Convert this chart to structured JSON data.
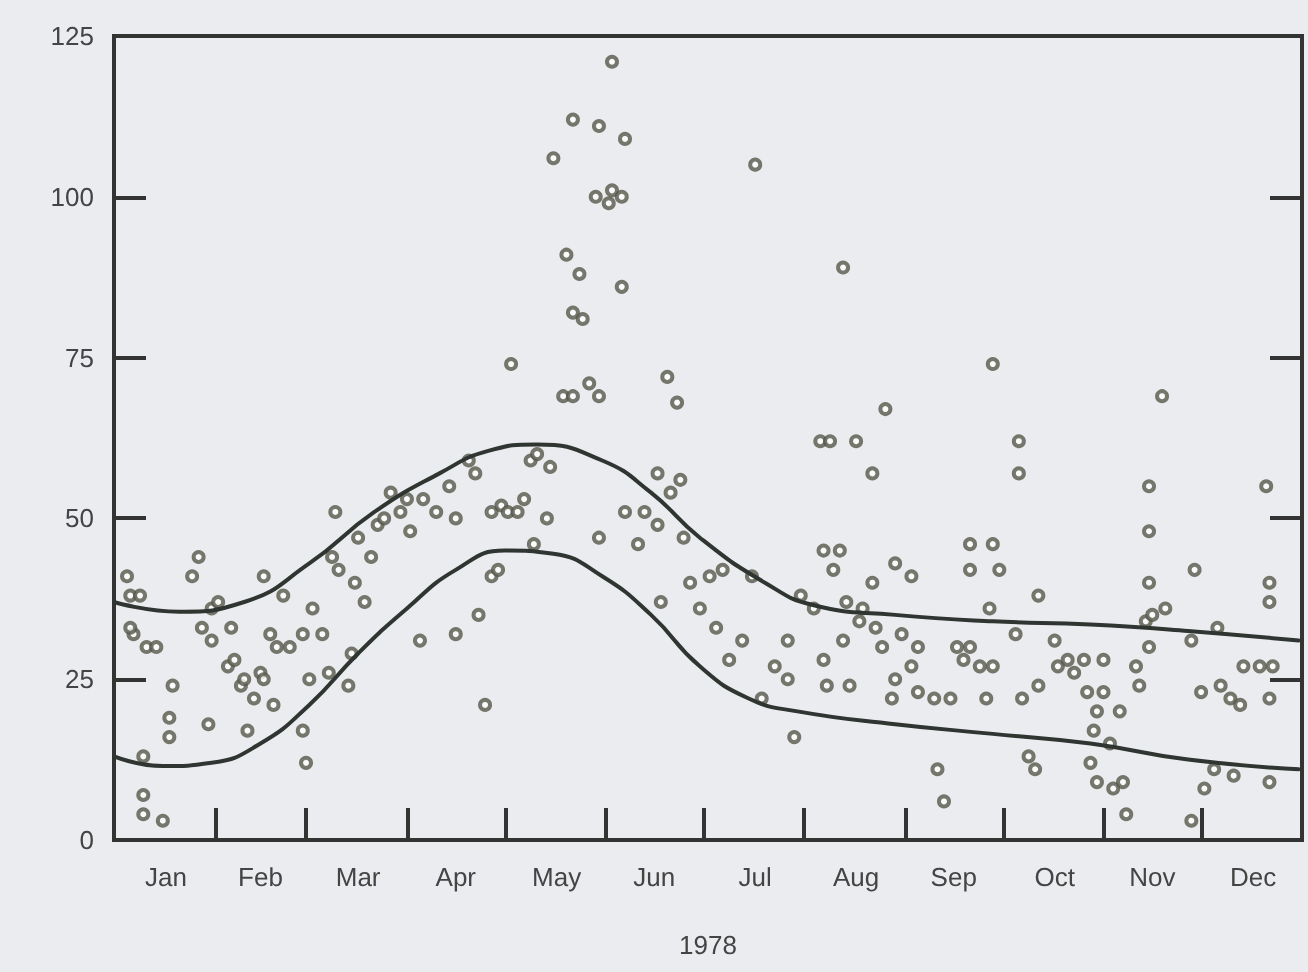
{
  "chart_data": {
    "type": "scatter",
    "xlabel": "1978",
    "line_style": "solid",
    "grid": false,
    "xlim": [
      "1978-01-01",
      "1979-01-01"
    ],
    "ylim": [
      0,
      125
    ],
    "yticks": [
      0,
      25,
      50,
      75,
      100,
      125
    ],
    "xticks": [
      {
        "value": "1978-01-17",
        "label": "Jan"
      },
      {
        "value": "1978-02-01",
        "label": null
      },
      {
        "value": "1978-02-15",
        "label": "Feb"
      },
      {
        "value": "1978-03-01",
        "label": null
      },
      {
        "value": "1978-03-17",
        "label": "Mar"
      },
      {
        "value": "1978-04-01",
        "label": null
      },
      {
        "value": "1978-04-16",
        "label": "Apr"
      },
      {
        "value": "1978-05-01",
        "label": null
      },
      {
        "value": "1978-05-17",
        "label": "May"
      },
      {
        "value": "1978-06-01",
        "label": null
      },
      {
        "value": "1978-06-16",
        "label": "Jun"
      },
      {
        "value": "1978-07-01",
        "label": null
      },
      {
        "value": "1978-07-17",
        "label": "Jul"
      },
      {
        "value": "1978-08-01",
        "label": null
      },
      {
        "value": "1978-08-17",
        "label": "Aug"
      },
      {
        "value": "1978-09-01",
        "label": null
      },
      {
        "value": "1978-09-16",
        "label": "Sep"
      },
      {
        "value": "1978-10-01",
        "label": null
      },
      {
        "value": "1978-10-17",
        "label": "Oct"
      },
      {
        "value": "1978-11-01",
        "label": null
      },
      {
        "value": "1978-11-16",
        "label": "Nov"
      },
      {
        "value": "1978-12-01",
        "label": null
      },
      {
        "value": "1978-12-17",
        "label": "Dec"
      }
    ],
    "series": [
      {
        "color": "#55584a",
        "marker": "circle",
        "x": [
          "1978-01-05",
          "1978-01-06",
          "1978-01-09",
          "1978-01-07",
          "1978-01-06",
          "1978-01-11",
          "1978-01-14",
          "1978-01-10",
          "1978-01-10",
          "1978-01-10",
          "1978-01-16",
          "1978-01-19",
          "1978-01-18",
          "1978-01-18",
          "1978-01-27",
          "1978-01-25",
          "1978-01-28",
          "1978-01-31",
          "1978-01-30",
          "1978-01-31",
          "1978-02-02",
          "1978-02-06",
          "1978-02-05",
          "1978-02-07",
          "1978-02-09",
          "1978-02-10",
          "1978-02-11",
          "1978-02-13",
          "1978-02-16",
          "1978-02-15",
          "1978-02-16",
          "1978-02-18",
          "1978-02-20",
          "1978-02-19",
          "1978-02-22",
          "1978-02-24",
          "1978-02-28",
          "1978-02-28",
          "1978-03-01",
          "1978-03-03",
          "1978-03-02",
          "1978-03-06",
          "1978-03-08",
          "1978-03-09",
          "1978-03-10",
          "1978-03-11",
          "1978-03-14",
          "1978-03-15",
          "1978-03-16",
          "1978-03-17",
          "1978-03-19",
          "1978-03-21",
          "1978-03-23",
          "1978-03-25",
          "1978-03-27",
          "1978-03-30",
          "1978-04-01",
          "1978-04-02",
          "1978-04-05",
          "1978-04-06",
          "1978-04-10",
          "1978-04-16",
          "1978-04-14",
          "1978-04-16",
          "1978-04-20",
          "1978-04-22",
          "1978-04-23",
          "1978-04-25",
          "1978-04-27",
          "1978-04-30",
          "1978-04-27",
          "1978-04-29",
          "1978-05-02",
          "1978-05-05",
          "1978-05-07",
          "1978-05-09",
          "1978-05-11",
          "1978-05-15",
          "1978-05-14",
          "1978-05-10",
          "1978-05-03",
          "1978-05-16",
          "1978-05-19",
          "1978-05-20",
          "1978-05-22",
          "1978-05-22",
          "1978-05-22",
          "1978-05-24",
          "1978-05-25",
          "1978-05-27",
          "1978-05-29",
          "1978-05-30",
          "1978-05-30",
          "1978-05-30",
          "1978-06-02",
          "1978-06-03",
          "1978-06-03",
          "1978-06-06",
          "1978-06-06",
          "1978-06-07",
          "1978-06-07",
          "1978-06-11",
          "1978-06-13",
          "1978-06-17",
          "1978-06-17",
          "1978-06-20",
          "1978-06-21",
          "1978-06-23",
          "1978-06-24",
          "1978-06-25",
          "1978-06-18",
          "1978-06-27",
          "1978-06-30",
          "1978-07-03",
          "1978-07-05",
          "1978-07-07",
          "1978-07-09",
          "1978-07-13",
          "1978-07-16",
          "1978-07-17",
          "1978-07-19",
          "1978-07-23",
          "1978-07-27",
          "1978-07-27",
          "1978-07-29",
          "1978-07-31",
          "1978-08-04",
          "1978-08-06",
          "1978-08-07",
          "1978-08-07",
          "1978-08-08",
          "1978-08-09",
          "1978-08-10",
          "1978-08-12",
          "1978-08-13",
          "1978-08-13",
          "1978-08-14",
          "1978-08-15",
          "1978-08-17",
          "1978-08-18",
          "1978-08-19",
          "1978-08-22",
          "1978-08-22",
          "1978-08-23",
          "1978-08-25",
          "1978-08-26",
          "1978-08-28",
          "1978-08-29",
          "1978-08-29",
          "1978-08-31",
          "1978-09-03",
          "1978-09-03",
          "1978-09-05",
          "1978-09-05",
          "1978-09-10",
          "1978-09-11",
          "1978-09-13",
          "1978-09-15",
          "1978-09-17",
          "1978-09-19",
          "1978-09-21",
          "1978-09-21",
          "1978-09-21",
          "1978-09-24",
          "1978-09-26",
          "1978-09-27",
          "1978-09-28",
          "1978-09-28",
          "1978-09-28",
          "1978-09-30",
          "1978-10-05",
          "1978-10-06",
          "1978-10-06",
          "1978-10-07",
          "1978-10-09",
          "1978-10-11",
          "1978-10-12",
          "1978-10-12",
          "1978-10-17",
          "1978-10-18",
          "1978-10-21",
          "1978-10-23",
          "1978-10-26",
          "1978-10-27",
          "1978-10-28",
          "1978-10-29",
          "1978-10-30",
          "1978-10-30",
          "1978-11-01",
          "1978-11-01",
          "1978-11-03",
          "1978-11-04",
          "1978-11-06",
          "1978-11-07",
          "1978-11-08",
          "1978-11-11",
          "1978-11-12",
          "1978-11-14",
          "1978-11-15",
          "1978-11-15",
          "1978-11-15",
          "1978-11-15",
          "1978-11-16",
          "1978-11-19",
          "1978-11-20",
          "1978-11-28",
          "1978-11-28",
          "1978-11-29",
          "1978-12-01",
          "1978-12-02",
          "1978-12-05",
          "1978-12-06",
          "1978-12-07",
          "1978-12-10",
          "1978-12-11",
          "1978-12-13",
          "1978-12-14",
          "1978-12-19",
          "1978-12-21",
          "1978-12-22",
          "1978-12-22",
          "1978-12-22",
          "1978-12-22",
          "1978-12-23"
        ],
        "values": [
          41,
          38,
          38,
          32,
          33,
          30,
          30,
          7,
          13,
          4,
          3,
          24,
          19,
          16,
          44,
          41,
          33,
          31,
          18,
          36,
          37,
          33,
          27,
          28,
          24,
          25,
          17,
          22,
          41,
          26,
          25,
          32,
          30,
          21,
          38,
          30,
          32,
          17,
          12,
          36,
          25,
          32,
          26,
          44,
          51,
          42,
          24,
          29,
          40,
          47,
          37,
          44,
          49,
          50,
          54,
          51,
          53,
          48,
          31,
          53,
          51,
          32,
          55,
          50,
          59,
          57,
          35,
          21,
          51,
          52,
          41,
          42,
          51,
          51,
          53,
          59,
          60,
          58,
          50,
          46,
          74,
          106,
          69,
          91,
          112,
          69,
          82,
          88,
          81,
          71,
          100,
          111,
          69,
          47,
          99,
          121,
          101,
          100,
          86,
          109,
          51,
          46,
          51,
          49,
          57,
          72,
          54,
          68,
          56,
          47,
          37,
          40,
          36,
          41,
          33,
          42,
          28,
          31,
          41,
          105,
          22,
          27,
          25,
          31,
          16,
          38,
          36,
          62,
          45,
          28,
          24,
          62,
          42,
          45,
          89,
          31,
          37,
          24,
          62,
          34,
          36,
          57,
          40,
          33,
          30,
          67,
          22,
          43,
          25,
          32,
          41,
          27,
          30,
          23,
          22,
          11,
          6,
          22,
          30,
          28,
          46,
          42,
          30,
          27,
          22,
          36,
          74,
          46,
          27,
          42,
          32,
          62,
          57,
          22,
          13,
          11,
          38,
          24,
          31,
          27,
          28,
          26,
          28,
          23,
          12,
          17,
          20,
          9,
          28,
          23,
          15,
          8,
          20,
          9,
          4,
          27,
          24,
          34,
          30,
          40,
          48,
          55,
          35,
          69,
          36,
          31,
          3,
          42,
          23,
          8,
          11,
          33,
          24,
          22,
          10,
          21,
          27,
          27,
          55,
          22,
          40,
          37,
          9,
          27
        ]
      },
      {
        "type": "line",
        "marker": "none",
        "color": "#2f3530",
        "x": [
          "1978-01-01",
          "1978-01-21",
          "1978-02-10",
          "1978-03-02",
          "1978-03-22",
          "1978-04-11",
          "1978-04-26",
          "1978-05-11",
          "1978-05-31",
          "1978-06-15",
          "1978-06-30",
          "1978-07-20",
          "1978-08-04",
          "1978-08-29",
          "1978-09-28",
          "1978-10-28",
          "1978-11-27",
          "1978-12-31"
        ],
        "values": [
          37,
          35.5,
          37,
          43,
          51,
          57,
          60.5,
          61.5,
          59,
          54,
          47,
          40,
          36.5,
          35,
          34,
          33.5,
          32.5,
          31
        ]
      },
      {
        "type": "line",
        "marker": "none",
        "color": "#2f3530",
        "x": [
          "1978-01-01",
          "1978-01-16",
          "1978-01-31",
          "1978-02-15",
          "1978-03-02",
          "1978-03-17",
          "1978-04-01",
          "1978-04-16",
          "1978-05-01",
          "1978-05-16",
          "1978-05-31",
          "1978-06-15",
          "1978-06-30",
          "1978-07-15",
          "1978-07-30",
          "1978-08-29",
          "1978-09-28",
          "1978-10-28",
          "1978-11-27",
          "1978-12-31"
        ],
        "values": [
          13,
          11.5,
          12,
          15,
          21,
          29,
          36,
          42,
          45,
          44.5,
          41,
          35,
          27,
          22,
          20,
          18,
          16.5,
          15,
          12.5,
          11
        ]
      }
    ]
  }
}
